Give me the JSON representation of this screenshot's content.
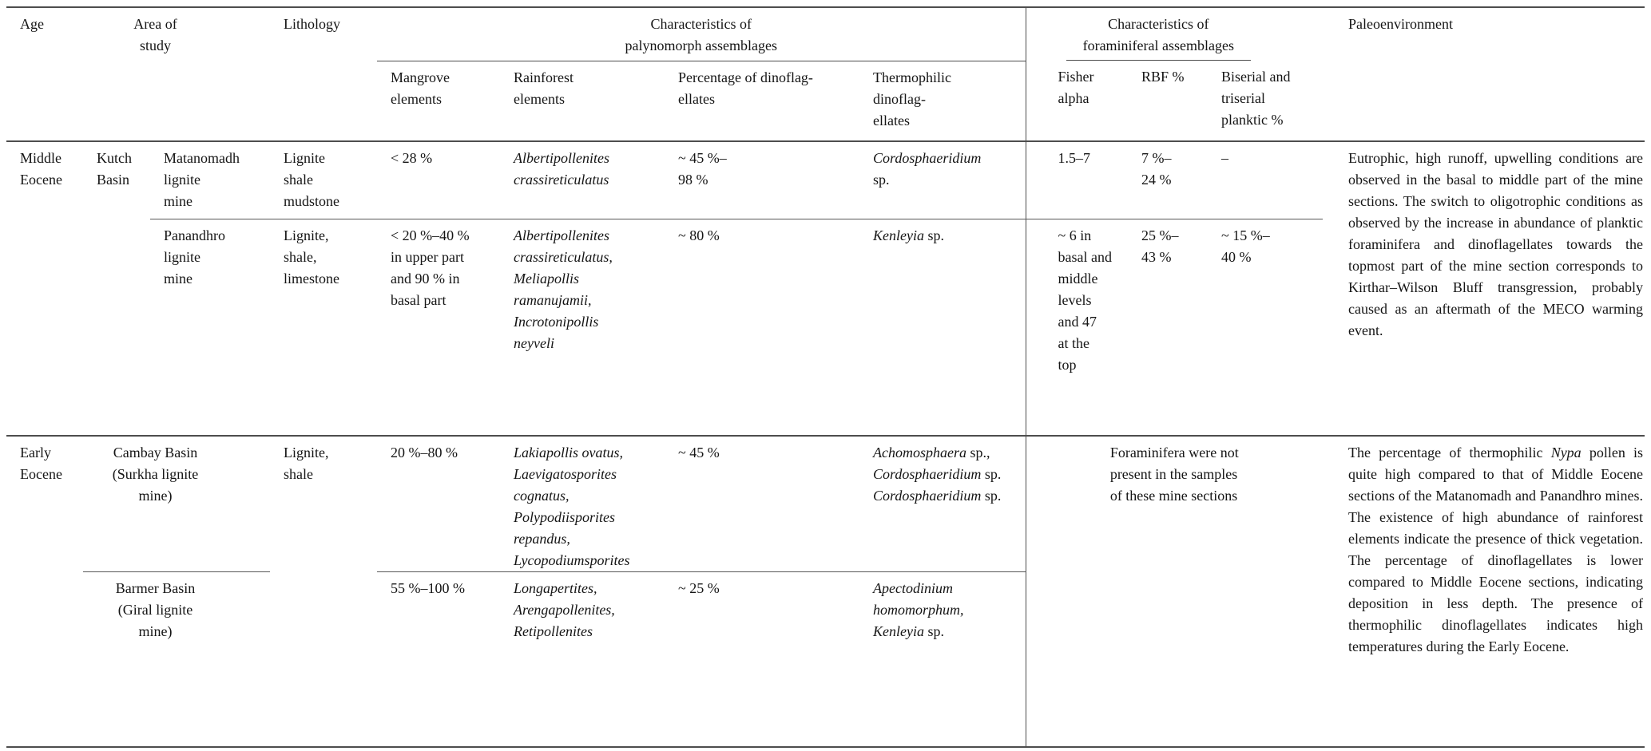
{
  "style": {
    "ink_color": "#151515",
    "rule_color": "#4d4d4d"
  },
  "table": {
    "header": {
      "age": "Age",
      "area_of_study": "Area of\nstudy",
      "lithology": "Lithology",
      "palynomorph_group": "Characteristics of\npalynomorph assemblages",
      "foraminiferal_group": "Characteristics of\nforaminiferal assemblages",
      "paleoenvironment": "Paleoenvironment",
      "subheaders": {
        "mangrove": "Mangrove\nelements",
        "rainforest": "Rainforest\nelements",
        "pct_dinoflagellates": "Percentage of dinoflag-\nellates",
        "thermophilic_dinoflagellates": "Thermophilic\ndinoflag-\nellates",
        "fisher_alpha": "Fisher\nalpha",
        "rbf_percent": "RBF %",
        "biserial_planktic": "Biserial and\ntriserial\nplanktic %"
      }
    },
    "middle_eocene": {
      "age": "Middle\nEocene",
      "basin": "Kutch\nBasin",
      "matanomadh": {
        "mine": "Matanomadh\nlignite\nmine",
        "lithology": "Lignite\nshale\nmudstone",
        "mangrove": "< 28 %",
        "rainforest": "Albertipollenites\ncrassireticulatus",
        "pct_dinoflagellates": "~ 45 %–\n98 %",
        "thermophilic": [
          {
            "t": "Cordosphaeridium",
            "i": true
          },
          {
            "t": "\nsp.",
            "i": false
          }
        ],
        "fisher_alpha": "1.5–7",
        "rbf_percent": "7 %–\n24 %",
        "biserial_planktic": "–"
      },
      "panandhro": {
        "mine": "Panandhro\nlignite\nmine",
        "lithology": "Lignite,\nshale,\nlimestone",
        "mangrove": "< 20 %–40 %\nin upper part\nand 90 % in\nbasal part",
        "rainforest": "Albertipollenites\ncrassireticulatus,\nMeliapollis\nramanujamii,\nIncrotonipollis\nneyveli",
        "pct_dinoflagellates": "~ 80 %",
        "thermophilic": [
          {
            "t": "Kenleyia",
            "i": true
          },
          {
            "t": " sp.",
            "i": false
          }
        ],
        "fisher_alpha": "~ 6 in\nbasal and\nmiddle\nlevels\nand 47\nat the\ntop",
        "rbf_percent": "25 %–\n43 %",
        "biserial_planktic": "~ 15 %–\n40 %"
      },
      "paleoenvironment": "Eutrophic, high runoff, upwelling conditions are observed in the basal to middle part of the mine sections. The switch to oligotrophic conditions as observed by the increase in abundance of planktic foraminifera and dinoflagellates towards the topmost part of the mine section corresponds to Kirthar–Wilson Bluff transgression, probably caused as an aftermath of the MECO warming event."
    },
    "early_eocene": {
      "age": "Early\nEocene",
      "cambay": {
        "area": "Cambay Basin\n(Surkha lignite\nmine)",
        "lithology": "Lignite,\nshale",
        "mangrove": "20 %–80 %",
        "rainforest": "Lakiapollis ovatus,\nLaevigatosporites\ncognatus,\nPolypodiisporites\nrepandus,\nLycopodiumsporites",
        "pct_dinoflagellates": "~ 45 %",
        "thermophilic": [
          {
            "t": "Achomosphaera",
            "i": true
          },
          {
            "t": " sp.,\n",
            "i": false
          },
          {
            "t": "Cordosphaeridium",
            "i": true
          },
          {
            "t": " sp.\n",
            "i": false
          },
          {
            "t": "Cordosphaeridium",
            "i": true
          },
          {
            "t": " sp.",
            "i": false
          }
        ]
      },
      "barmer": {
        "area": "Barmer Basin\n(Giral lignite\nmine)",
        "mangrove": "55 %–100 %",
        "rainforest": "Longapertites,\nArengapollenites,\nRetipollenites",
        "pct_dinoflagellates": "~ 25 %",
        "thermophilic": [
          {
            "t": "Apectodinium\nhomomorphum,\nKenleyia",
            "i": true
          },
          {
            "t": " sp.",
            "i": false
          }
        ]
      },
      "foraminifera_note": "Foraminifera were not\npresent in the samples\nof these mine sections",
      "paleoenvironment": [
        {
          "t": "The percentage of thermophilic ",
          "i": false
        },
        {
          "t": "Nypa",
          "i": true
        },
        {
          "t": " pollen is quite high compared to that of Middle Eocene sections of the Matanomadh and Panandhro mines. The existence of high abundance of rainforest elements indicate the presence of thick vegetation. The percentage of dinoflagellates is lower compared to Middle Eocene sections, indicating deposition in less depth. The presence of thermophilic dinoflagellates indicates high temperatures during the Early Eocene.",
          "i": false
        }
      ]
    }
  }
}
